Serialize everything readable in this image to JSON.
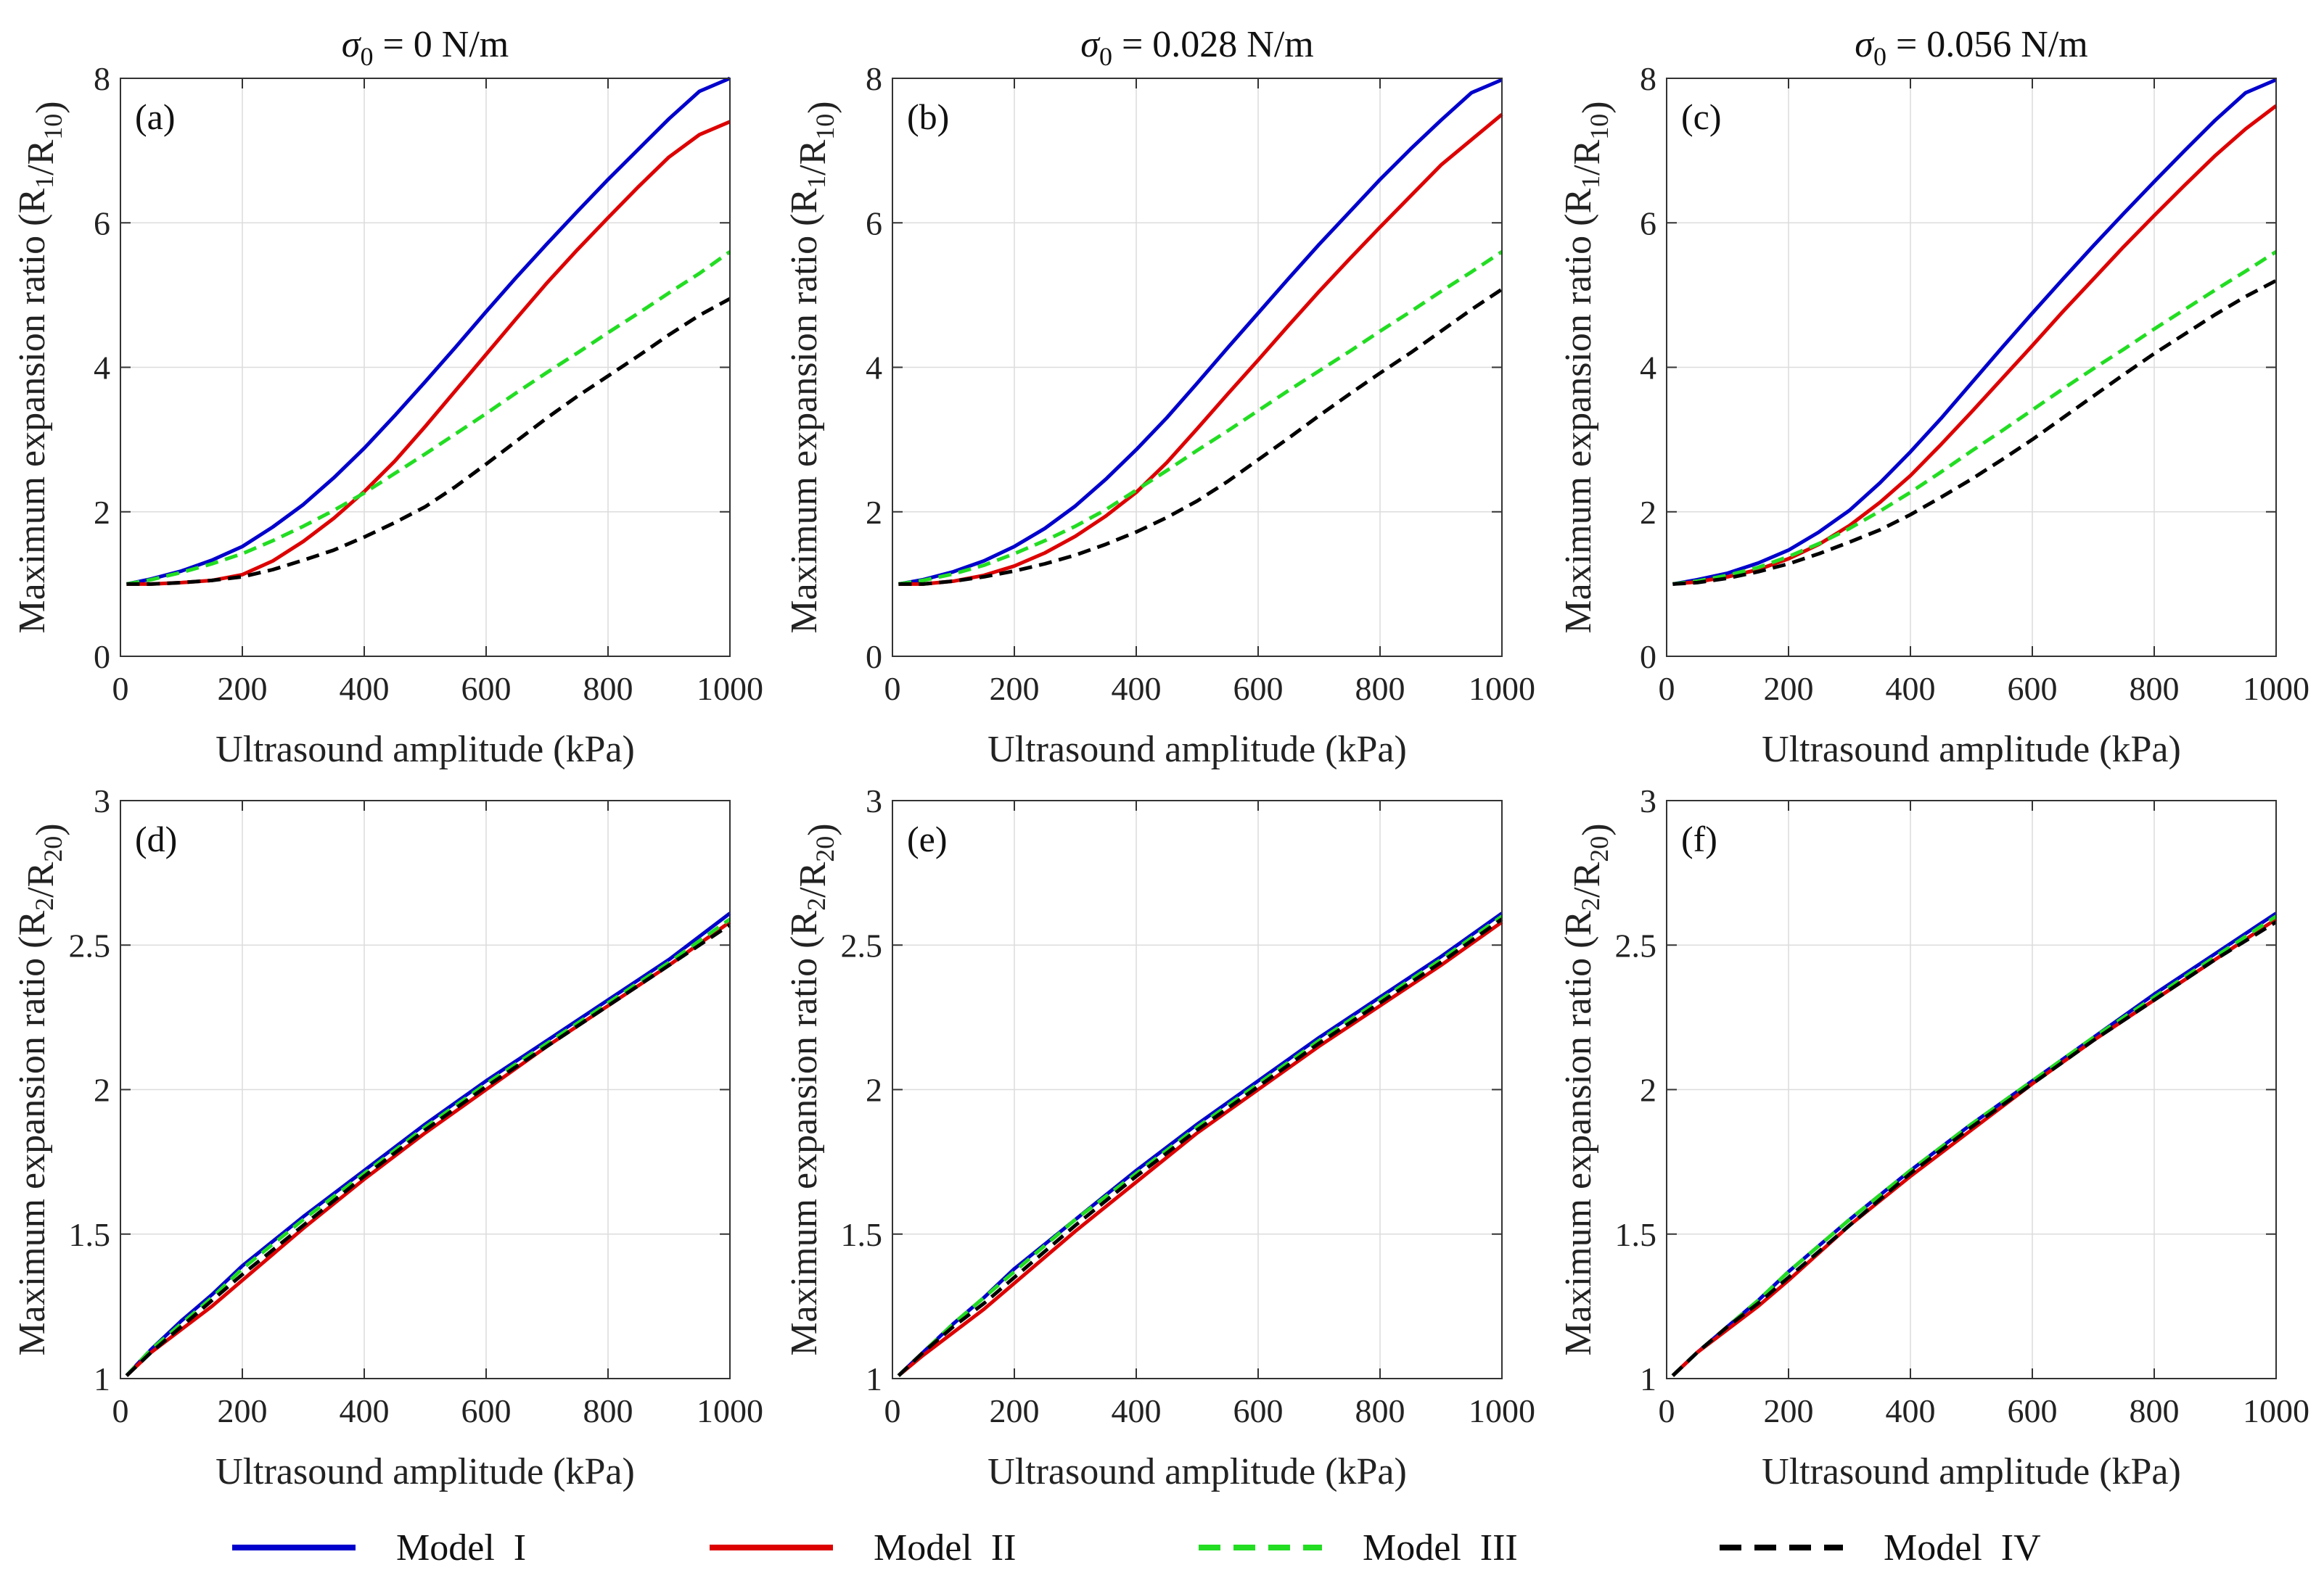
{
  "figure": {
    "column_titles": [
      {
        "prefix": "σ",
        "sub": "0",
        "rest": " = 0 N/m"
      },
      {
        "prefix": "σ",
        "sub": "0",
        "rest": " = 0.028 N/m"
      },
      {
        "prefix": "σ",
        "sub": "0",
        "rest": " = 0.056 N/m"
      }
    ]
  },
  "legend": [
    {
      "name": "Model  I",
      "color": "#0000cc",
      "dash": false
    },
    {
      "name": "Model  II",
      "color": "#dd0000",
      "dash": false
    },
    {
      "name": "Model  III",
      "color": "#22dd22",
      "dash": true
    },
    {
      "name": "Model  IV",
      "color": "#000000",
      "dash": true
    }
  ],
  "chart_data": [
    {
      "type": "line",
      "panel": "(a)",
      "title": "σ0 = 0 N/m",
      "xlabel": "Ultrasound amplitude (kPa)",
      "ylabel": {
        "main": "Maximum expansion ratio (R",
        "s1": "1",
        "mid": "/R",
        "s2": "10",
        "end": ")"
      },
      "xlim": [
        0,
        1000
      ],
      "ylim": [
        0,
        8
      ],
      "grid": true,
      "x_ticks": [
        "0",
        "200",
        "400",
        "600",
        "800",
        "1000"
      ],
      "y_ticks": [
        "0",
        "2",
        "4",
        "6",
        "8"
      ],
      "x": [
        10,
        50,
        100,
        150,
        200,
        250,
        300,
        350,
        400,
        450,
        500,
        550,
        600,
        650,
        700,
        750,
        800,
        850,
        900,
        950,
        1000
      ],
      "series": [
        {
          "name": "Model  I",
          "values": [
            1.0,
            1.07,
            1.18,
            1.33,
            1.52,
            1.79,
            2.1,
            2.47,
            2.88,
            3.33,
            3.8,
            4.28,
            4.77,
            5.25,
            5.71,
            6.16,
            6.6,
            7.02,
            7.44,
            7.82,
            8.0
          ]
        },
        {
          "name": "Model  II",
          "values": [
            1.0,
            1.0,
            1.02,
            1.05,
            1.13,
            1.32,
            1.59,
            1.91,
            2.28,
            2.7,
            3.18,
            3.68,
            4.18,
            4.68,
            5.17,
            5.63,
            6.07,
            6.5,
            6.91,
            7.22,
            7.4
          ]
        },
        {
          "name": "Model  III",
          "values": [
            1.0,
            1.06,
            1.16,
            1.28,
            1.42,
            1.6,
            1.8,
            2.02,
            2.26,
            2.53,
            2.8,
            3.08,
            3.36,
            3.65,
            3.93,
            4.2,
            4.48,
            4.75,
            5.03,
            5.3,
            5.6
          ]
        },
        {
          "name": "Model  IV",
          "values": [
            1.0,
            1.0,
            1.02,
            1.05,
            1.1,
            1.2,
            1.33,
            1.47,
            1.65,
            1.85,
            2.07,
            2.35,
            2.66,
            2.98,
            3.3,
            3.6,
            3.88,
            4.16,
            4.45,
            4.72,
            4.95
          ]
        }
      ]
    },
    {
      "type": "line",
      "panel": "(b)",
      "title": "σ0 = 0.028 N/m",
      "xlabel": "Ultrasound amplitude (kPa)",
      "ylabel": {
        "main": "Maximum expansion ratio (R",
        "s1": "1",
        "mid": "/R",
        "s2": "10",
        "end": ")"
      },
      "xlim": [
        0,
        1000
      ],
      "ylim": [
        0,
        8
      ],
      "grid": true,
      "x_ticks": [
        "0",
        "200",
        "400",
        "600",
        "800",
        "1000"
      ],
      "y_ticks": [
        "0",
        "2",
        "4",
        "6",
        "8"
      ],
      "x": [
        10,
        50,
        100,
        150,
        200,
        250,
        300,
        350,
        400,
        450,
        500,
        550,
        600,
        650,
        700,
        750,
        800,
        850,
        900,
        950,
        1000
      ],
      "series": [
        {
          "name": "Model  I",
          "values": [
            1.0,
            1.06,
            1.17,
            1.32,
            1.52,
            1.77,
            2.08,
            2.45,
            2.86,
            3.3,
            3.78,
            4.27,
            4.75,
            5.23,
            5.7,
            6.15,
            6.6,
            7.02,
            7.42,
            7.8,
            7.98
          ]
        },
        {
          "name": "Model  II",
          "values": [
            1.0,
            1.0,
            1.04,
            1.12,
            1.25,
            1.43,
            1.66,
            1.94,
            2.27,
            2.68,
            3.15,
            3.63,
            4.1,
            4.58,
            5.05,
            5.5,
            5.94,
            6.37,
            6.8,
            7.15,
            7.5
          ]
        },
        {
          "name": "Model  III",
          "values": [
            1.0,
            1.05,
            1.14,
            1.26,
            1.42,
            1.6,
            1.8,
            2.03,
            2.3,
            2.57,
            2.85,
            3.12,
            3.4,
            3.68,
            3.95,
            4.22,
            4.5,
            4.77,
            5.05,
            5.32,
            5.6
          ]
        },
        {
          "name": "Model  IV",
          "values": [
            1.0,
            1.0,
            1.04,
            1.1,
            1.18,
            1.28,
            1.4,
            1.55,
            1.72,
            1.92,
            2.15,
            2.42,
            2.72,
            3.02,
            3.33,
            3.63,
            3.92,
            4.2,
            4.5,
            4.8,
            5.08
          ]
        }
      ]
    },
    {
      "type": "line",
      "panel": "(c)",
      "title": "σ0 = 0.056 N/m",
      "xlabel": "Ultrasound amplitude (kPa)",
      "ylabel": {
        "main": "Maximum expansion ratio (R",
        "s1": "1",
        "mid": "/R",
        "s2": "10",
        "end": ")"
      },
      "xlim": [
        0,
        1000
      ],
      "ylim": [
        0,
        8
      ],
      "grid": true,
      "x_ticks": [
        "0",
        "200",
        "400",
        "600",
        "800",
        "1000"
      ],
      "y_ticks": [
        "0",
        "2",
        "4",
        "6",
        "8"
      ],
      "x": [
        10,
        50,
        100,
        150,
        200,
        250,
        300,
        350,
        400,
        450,
        500,
        550,
        600,
        650,
        700,
        750,
        800,
        850,
        900,
        950,
        1000
      ],
      "series": [
        {
          "name": "Model  I",
          "values": [
            1.0,
            1.06,
            1.15,
            1.29,
            1.47,
            1.72,
            2.02,
            2.4,
            2.83,
            3.29,
            3.78,
            4.27,
            4.75,
            5.22,
            5.68,
            6.13,
            6.57,
            7.0,
            7.42,
            7.8,
            7.98
          ]
        },
        {
          "name": "Model  II",
          "values": [
            1.0,
            1.03,
            1.1,
            1.2,
            1.35,
            1.55,
            1.81,
            2.13,
            2.5,
            2.93,
            3.38,
            3.84,
            4.3,
            4.77,
            5.22,
            5.67,
            6.1,
            6.52,
            6.93,
            7.3,
            7.62
          ]
        },
        {
          "name": "Model  III",
          "values": [
            1.0,
            1.04,
            1.12,
            1.23,
            1.38,
            1.56,
            1.77,
            2.01,
            2.27,
            2.55,
            2.84,
            3.12,
            3.41,
            3.7,
            3.98,
            4.25,
            4.53,
            4.8,
            5.07,
            5.33,
            5.6
          ]
        },
        {
          "name": "Model  IV",
          "values": [
            1.0,
            1.02,
            1.08,
            1.17,
            1.28,
            1.42,
            1.58,
            1.75,
            1.96,
            2.2,
            2.45,
            2.72,
            3.0,
            3.3,
            3.6,
            3.9,
            4.19,
            4.46,
            4.73,
            4.98,
            5.2
          ]
        }
      ]
    },
    {
      "type": "line",
      "panel": "(d)",
      "xlabel": "Ultrasound amplitude (kPa)",
      "ylabel": {
        "main": "Maximum expansion ratio (R",
        "s1": "2",
        "mid": "/R",
        "s2": "20",
        "end": ")"
      },
      "xlim": [
        0,
        1000
      ],
      "ylim": [
        1,
        3
      ],
      "grid": true,
      "x_ticks": [
        "0",
        "200",
        "400",
        "600",
        "800",
        "1000"
      ],
      "y_ticks": [
        "1",
        "1.5",
        "2",
        "2.5",
        "3"
      ],
      "x": [
        10,
        50,
        100,
        150,
        200,
        300,
        400,
        500,
        600,
        700,
        800,
        900,
        1000
      ],
      "series": [
        {
          "name": "Model  I",
          "values": [
            1.01,
            1.1,
            1.2,
            1.29,
            1.39,
            1.56,
            1.72,
            1.88,
            2.03,
            2.17,
            2.31,
            2.45,
            2.61
          ]
        },
        {
          "name": "Model  II",
          "values": [
            1.01,
            1.09,
            1.17,
            1.25,
            1.34,
            1.52,
            1.69,
            1.85,
            2.0,
            2.15,
            2.29,
            2.43,
            2.58
          ]
        },
        {
          "name": "Model  III",
          "values": [
            1.01,
            1.1,
            1.19,
            1.28,
            1.38,
            1.55,
            1.71,
            1.87,
            2.02,
            2.16,
            2.3,
            2.44,
            2.59
          ]
        },
        {
          "name": "Model  IV",
          "values": [
            1.01,
            1.09,
            1.18,
            1.27,
            1.36,
            1.53,
            1.7,
            1.86,
            2.01,
            2.15,
            2.29,
            2.43,
            2.57
          ]
        }
      ]
    },
    {
      "type": "line",
      "panel": "(e)",
      "xlabel": "Ultrasound amplitude (kPa)",
      "ylabel": {
        "main": "Maximum expansion ratio (R",
        "s1": "2",
        "mid": "/R",
        "s2": "20",
        "end": ")"
      },
      "xlim": [
        0,
        1000
      ],
      "ylim": [
        1,
        3
      ],
      "grid": true,
      "x_ticks": [
        "0",
        "200",
        "400",
        "600",
        "800",
        "1000"
      ],
      "y_ticks": [
        "1",
        "1.5",
        "2",
        "2.5",
        "3"
      ],
      "x": [
        10,
        50,
        100,
        150,
        200,
        300,
        400,
        500,
        600,
        700,
        800,
        900,
        1000
      ],
      "series": [
        {
          "name": "Model  I",
          "values": [
            1.01,
            1.09,
            1.19,
            1.28,
            1.38,
            1.55,
            1.72,
            1.88,
            2.03,
            2.18,
            2.32,
            2.46,
            2.61
          ]
        },
        {
          "name": "Model  II",
          "values": [
            1.01,
            1.08,
            1.16,
            1.24,
            1.33,
            1.51,
            1.68,
            1.85,
            2.0,
            2.15,
            2.29,
            2.43,
            2.58
          ]
        },
        {
          "name": "Model  III",
          "values": [
            1.01,
            1.09,
            1.19,
            1.28,
            1.37,
            1.55,
            1.71,
            1.87,
            2.02,
            2.17,
            2.31,
            2.45,
            2.6
          ]
        },
        {
          "name": "Model  IV",
          "values": [
            1.01,
            1.09,
            1.18,
            1.26,
            1.35,
            1.53,
            1.7,
            1.86,
            2.01,
            2.16,
            2.3,
            2.44,
            2.59
          ]
        }
      ]
    },
    {
      "type": "line",
      "panel": "(f)",
      "xlabel": "Ultrasound amplitude (kPa)",
      "ylabel": {
        "main": "Maximum expansion ratio (R",
        "s1": "2",
        "mid": "/R",
        "s2": "20",
        "end": ")"
      },
      "xlim": [
        0,
        1000
      ],
      "ylim": [
        1,
        3
      ],
      "grid": true,
      "x_ticks": [
        "0",
        "200",
        "400",
        "600",
        "800",
        "1000"
      ],
      "y_ticks": [
        "1",
        "1.5",
        "2",
        "2.5",
        "3"
      ],
      "x": [
        10,
        50,
        100,
        150,
        200,
        300,
        400,
        500,
        600,
        700,
        800,
        900,
        1000
      ],
      "series": [
        {
          "name": "Model  I",
          "values": [
            1.01,
            1.09,
            1.18,
            1.27,
            1.37,
            1.55,
            1.72,
            1.88,
            2.03,
            2.18,
            2.33,
            2.47,
            2.61
          ]
        },
        {
          "name": "Model  II",
          "values": [
            1.01,
            1.09,
            1.17,
            1.25,
            1.34,
            1.53,
            1.7,
            1.86,
            2.02,
            2.17,
            2.31,
            2.45,
            2.59
          ]
        },
        {
          "name": "Model  III",
          "values": [
            1.01,
            1.09,
            1.18,
            1.27,
            1.37,
            1.55,
            1.72,
            1.88,
            2.03,
            2.18,
            2.32,
            2.46,
            2.6
          ]
        },
        {
          "name": "Model  IV",
          "values": [
            1.01,
            1.09,
            1.18,
            1.26,
            1.35,
            1.53,
            1.71,
            1.87,
            2.02,
            2.17,
            2.31,
            2.45,
            2.58
          ]
        }
      ]
    }
  ]
}
